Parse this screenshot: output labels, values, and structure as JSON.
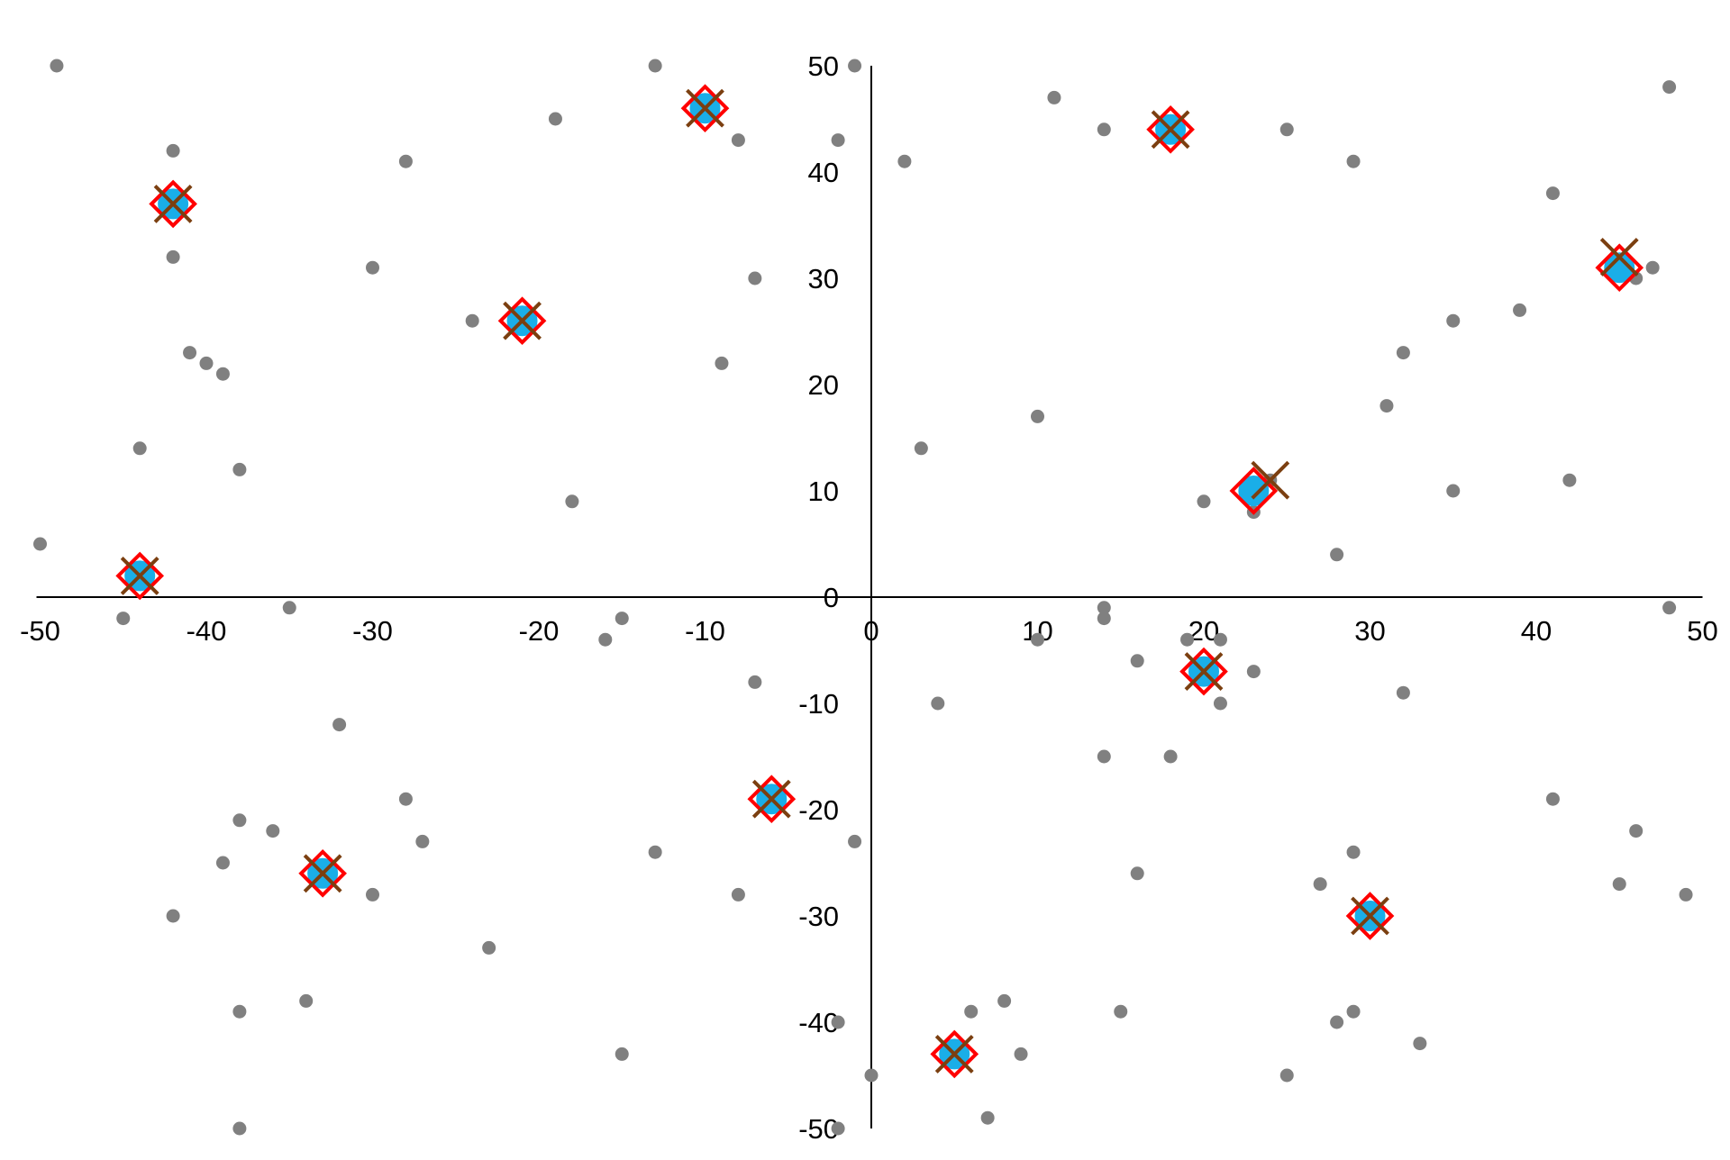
{
  "chart_data": {
    "type": "scatter",
    "xlim": [
      -50,
      50
    ],
    "ylim": [
      -50,
      50
    ],
    "x_ticks": [
      "-50",
      "-40",
      "-30",
      "-20",
      "-10",
      "0",
      "10",
      "20",
      "30",
      "40",
      "50"
    ],
    "y_ticks": [
      "50",
      "40",
      "30",
      "20",
      "10",
      "0",
      "-10",
      "-20",
      "-30",
      "-40",
      "-50"
    ],
    "grid": false,
    "legend": "none",
    "colors": {
      "data_points": "#808080",
      "centers": "#1aaee8",
      "diamond_markers": "#ff0000",
      "cross_markers": "#7b3f10",
      "axes": "#000000"
    },
    "series": [
      {
        "role": "data-points",
        "marker": "small-gray-circle",
        "points": [
          [
            -49,
            50
          ],
          [
            -13,
            50
          ],
          [
            -1,
            50
          ],
          [
            11,
            47
          ],
          [
            48,
            48
          ],
          [
            -42,
            42
          ],
          [
            -28,
            41
          ],
          [
            -19,
            45
          ],
          [
            -8,
            43
          ],
          [
            -2,
            43
          ],
          [
            2,
            41
          ],
          [
            14,
            44
          ],
          [
            25,
            44
          ],
          [
            29,
            41
          ],
          [
            41,
            38
          ],
          [
            -42,
            37
          ],
          [
            -42,
            32
          ],
          [
            -30,
            31
          ],
          [
            -7,
            30
          ],
          [
            47,
            31
          ],
          [
            46,
            30
          ],
          [
            -24,
            26
          ],
          [
            35,
            26
          ],
          [
            39,
            27
          ],
          [
            -41,
            23
          ],
          [
            -40,
            22
          ],
          [
            -39,
            21
          ],
          [
            -9,
            22
          ],
          [
            32,
            23
          ],
          [
            10,
            17
          ],
          [
            31,
            18
          ],
          [
            -44,
            14
          ],
          [
            -38,
            12
          ],
          [
            3,
            14
          ],
          [
            -18,
            9
          ],
          [
            20,
            9
          ],
          [
            23,
            8
          ],
          [
            24,
            11
          ],
          [
            35,
            10
          ],
          [
            42,
            11
          ],
          [
            28,
            4
          ],
          [
            -50,
            5
          ],
          [
            -45,
            -2
          ],
          [
            -35,
            -1
          ],
          [
            -16,
            -4
          ],
          [
            -15,
            -2
          ],
          [
            10,
            -4
          ],
          [
            14,
            -1
          ],
          [
            14,
            -2
          ],
          [
            16,
            -6
          ],
          [
            19,
            -4
          ],
          [
            21,
            -4
          ],
          [
            48,
            -1
          ],
          [
            21,
            -10
          ],
          [
            23,
            -7
          ],
          [
            32,
            -9
          ],
          [
            -7,
            -8
          ],
          [
            4,
            -10
          ],
          [
            -32,
            -12
          ],
          [
            14,
            -15
          ],
          [
            18,
            -15
          ],
          [
            -38,
            -21
          ],
          [
            -36,
            -22
          ],
          [
            -28,
            -19
          ],
          [
            -27,
            -23
          ],
          [
            -39,
            -25
          ],
          [
            -13,
            -24
          ],
          [
            -1,
            -23
          ],
          [
            41,
            -19
          ],
          [
            46,
            -22
          ],
          [
            29,
            -24
          ],
          [
            -42,
            -30
          ],
          [
            -30,
            -28
          ],
          [
            -8,
            -28
          ],
          [
            16,
            -26
          ],
          [
            27,
            -27
          ],
          [
            45,
            -27
          ],
          [
            49,
            -28
          ],
          [
            -23,
            -33
          ],
          [
            -38,
            -39
          ],
          [
            -34,
            -38
          ],
          [
            6,
            -39
          ],
          [
            8,
            -38
          ],
          [
            15,
            -39
          ],
          [
            29,
            -39
          ],
          [
            28,
            -40
          ],
          [
            -2,
            -40
          ],
          [
            -15,
            -43
          ],
          [
            9,
            -43
          ],
          [
            33,
            -42
          ],
          [
            0,
            -45
          ],
          [
            25,
            -45
          ],
          [
            -38,
            -50
          ],
          [
            -2,
            -50
          ],
          [
            7,
            -49
          ]
        ]
      },
      {
        "role": "centers",
        "marker": "blue-circle-red-diamond-brown-cross",
        "points": [
          [
            -42,
            37
          ],
          [
            -10,
            46
          ],
          [
            18,
            44
          ],
          [
            45,
            31
          ],
          [
            -21,
            26
          ],
          [
            23,
            10
          ],
          [
            -44,
            2
          ],
          [
            20,
            -7
          ],
          [
            -6,
            -19
          ],
          [
            -33,
            -26
          ],
          [
            30,
            -30
          ],
          [
            5,
            -43
          ]
        ],
        "cross_points": [
          [
            -42,
            37
          ],
          [
            -10,
            46
          ],
          [
            18,
            44
          ],
          [
            45,
            32
          ],
          [
            -21,
            26
          ],
          [
            24,
            11
          ],
          [
            -44,
            2
          ],
          [
            20,
            -7
          ],
          [
            -6,
            -19
          ],
          [
            -33,
            -26
          ],
          [
            30,
            -30
          ],
          [
            5,
            -43
          ]
        ]
      }
    ]
  }
}
